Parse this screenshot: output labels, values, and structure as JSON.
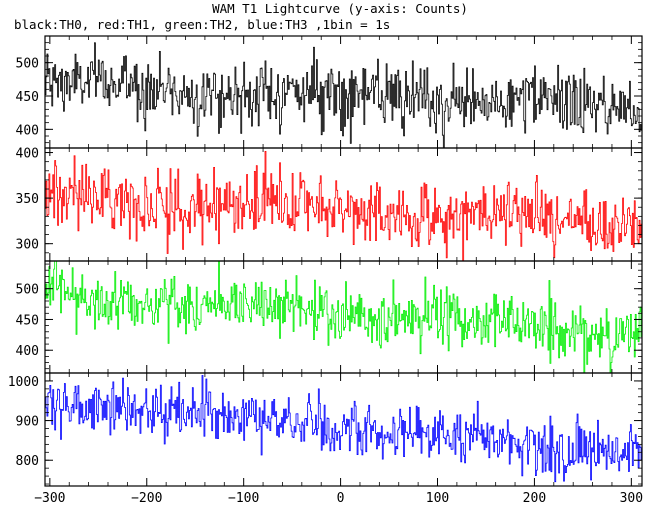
{
  "chart_data": {
    "type": "line",
    "title": "WAM T1 Lightcurve (y-axis: Counts)",
    "subtitle": "black:TH0, red:TH1, green:TH2, blue:TH3 ,1bin = 1s",
    "x_range": [
      -305,
      311
    ],
    "x_ticks": [
      -300,
      -200,
      -100,
      0,
      100,
      200,
      300
    ],
    "x_tick_labels": [
      "−300",
      "−200",
      "−100",
      "0",
      "100",
      "200",
      "300"
    ],
    "grid": false,
    "panels": [
      {
        "series_label": "TH0",
        "color": "#000000",
        "ylim": [
          372,
          540
        ],
        "y_ticks": [
          400,
          450,
          500
        ],
        "y_tick_labels": [
          "400",
          "450",
          "500"
        ],
        "trend_start": 468,
        "trend_end": 432,
        "noise_sd": 24
      },
      {
        "series_label": "TH1",
        "color": "#ff0000",
        "ylim": [
          281,
          405
        ],
        "y_ticks": [
          300,
          350,
          400
        ],
        "y_tick_labels": [
          "300",
          "350",
          "400"
        ],
        "trend_start": 352,
        "trend_end": 322,
        "noise_sd": 18
      },
      {
        "series_label": "TH2",
        "color": "#00ee00",
        "ylim": [
          363,
          545
        ],
        "y_ticks": [
          400,
          450,
          500
        ],
        "y_tick_labels": [
          "400",
          "450",
          "500"
        ],
        "trend_start": 492,
        "trend_end": 428,
        "noise_sd": 24
      },
      {
        "series_label": "TH3",
        "color": "#0000ff",
        "ylim": [
          735,
          1020
        ],
        "y_ticks": [
          800,
          900,
          1000
        ],
        "y_tick_labels": [
          "800",
          "900",
          "1000"
        ],
        "trend_start": 950,
        "trend_end": 815,
        "noise_sd": 34
      }
    ]
  }
}
